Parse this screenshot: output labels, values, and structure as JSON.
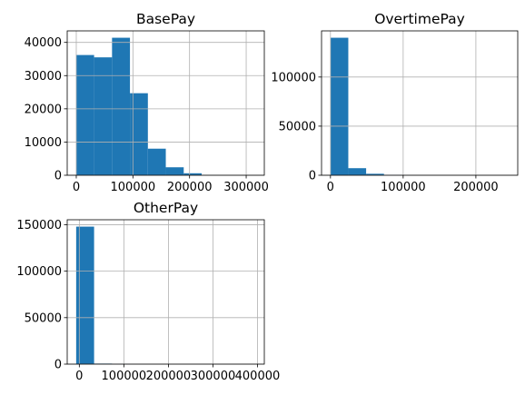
{
  "chart_data": [
    {
      "type": "bar",
      "title": "BasePay",
      "xlabel": "",
      "ylabel": "",
      "bin_edges": [
        -166,
        31480,
        63126,
        94772,
        126418,
        158064,
        189710,
        221356,
        253002,
        284648,
        316294
      ],
      "values": [
        36200,
        35500,
        41400,
        24700,
        8000,
        2400,
        600,
        50,
        20,
        5
      ],
      "xlim": [
        -16000,
        332000
      ],
      "ylim": [
        0,
        43470
      ],
      "xticks": [
        0,
        100000,
        200000,
        300000
      ],
      "xtick_labels": [
        "0",
        "100000",
        "200000",
        "300000"
      ],
      "yticks": [
        0,
        10000,
        20000,
        30000,
        40000
      ],
      "ytick_labels": [
        "0",
        "10000",
        "20000",
        "30000",
        "40000"
      ],
      "grid": true
    },
    {
      "type": "bar",
      "title": "OvertimePay",
      "xlabel": "",
      "ylabel": "",
      "bin_edges": [
        -0.01,
        24531,
        49062,
        73593,
        98124,
        122655,
        147186,
        171716,
        196247,
        220778,
        245309
      ],
      "values": [
        140000,
        7200,
        1500,
        400,
        150,
        60,
        30,
        15,
        8,
        3
      ],
      "xlim": [
        -12266,
        257575
      ],
      "ylim": [
        0,
        147000
      ],
      "xticks": [
        0,
        100000,
        200000
      ],
      "xtick_labels": [
        "0",
        "100000",
        "200000"
      ],
      "yticks": [
        0,
        50000,
        100000
      ],
      "ytick_labels": [
        "0",
        "50000",
        "100000"
      ],
      "grid": true
    },
    {
      "type": "bar",
      "title": "OtherPay",
      "xlabel": "",
      "ylabel": "",
      "bin_edges": [
        -7059,
        33170,
        73400,
        113629,
        153858,
        194088,
        234317,
        274546,
        314776,
        355005,
        395234
      ],
      "values": [
        147900,
        600,
        80,
        25,
        10,
        5,
        3,
        2,
        1,
        1
      ],
      "xlim": [
        -27173,
        415348
      ],
      "ylim": [
        0,
        155300
      ],
      "xticks": [
        0,
        100000,
        200000,
        300000,
        400000
      ],
      "xtick_labels": [
        "0",
        "100000",
        "200000",
        "300000",
        "400000"
      ],
      "yticks": [
        0,
        50000,
        100000,
        150000
      ],
      "ytick_labels": [
        "0",
        "50000",
        "100000",
        "150000"
      ],
      "grid": true
    }
  ]
}
